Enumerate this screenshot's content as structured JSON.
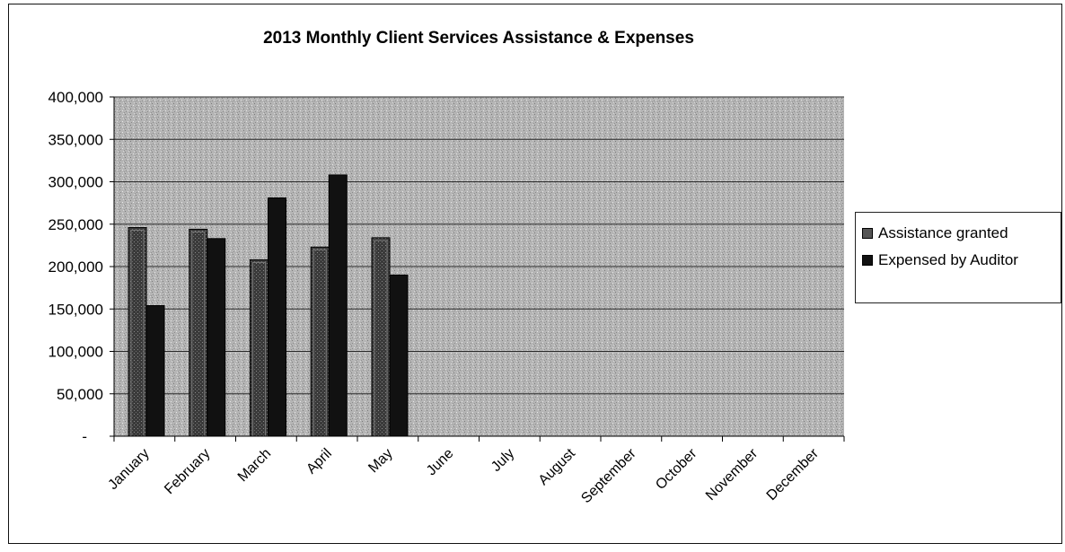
{
  "chart_data": {
    "type": "bar",
    "title": "2013 Monthly Client Services Assistance & Expenses",
    "xlabel": "",
    "ylabel": "",
    "ylim": [
      0,
      400000
    ],
    "yticks": [
      0,
      50000,
      100000,
      150000,
      200000,
      250000,
      300000,
      350000,
      400000
    ],
    "ytick_labels": [
      "-",
      "50,000",
      "100,000",
      "150,000",
      "200,000",
      "250,000",
      "300,000",
      "350,000",
      "400,000"
    ],
    "categories": [
      "January",
      "February",
      "March",
      "April",
      "May",
      "June",
      "July",
      "August",
      "September",
      "October",
      "November",
      "December"
    ],
    "series": [
      {
        "name": "Assistance granted",
        "color": "#4a4a4a",
        "values": [
          246000,
          244000,
          208000,
          223000,
          234000,
          null,
          null,
          null,
          null,
          null,
          null,
          null
        ]
      },
      {
        "name": "Expensed by Auditor",
        "color": "#111111",
        "values": [
          154000,
          233000,
          281000,
          308000,
          190000,
          null,
          null,
          null,
          null,
          null,
          null,
          null
        ]
      }
    ],
    "grid": true,
    "legend_position": "right",
    "plot_background": "#b3b3b3"
  }
}
